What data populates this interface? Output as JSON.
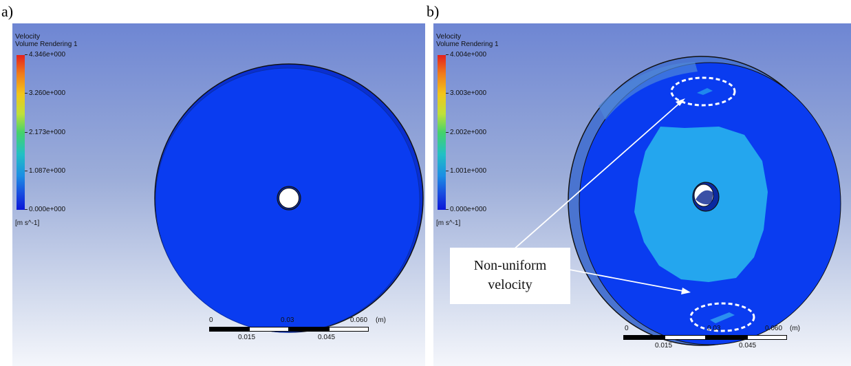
{
  "panel_a": {
    "label": "a)",
    "legend": {
      "title": "Velocity",
      "subtitle": "Volume Rendering 1",
      "ticks": [
        "4.346e+000",
        "3.260e+000",
        "2.173e+000",
        "1.087e+000",
        "0.000e+000"
      ],
      "unit": "[m s^-1]"
    },
    "scale_bar": {
      "top_labels": [
        "0",
        "0.03",
        "0.060",
        "(m)"
      ],
      "bottom_labels": [
        "0.015",
        "0.045"
      ]
    }
  },
  "panel_b": {
    "label": "b)",
    "legend": {
      "title": "Velocity",
      "subtitle": "Volume Rendering 1",
      "ticks": [
        "4.004e+000",
        "3.003e+000",
        "2.002e+000",
        "1.001e+000",
        "0.000e+000"
      ],
      "unit": "[m s^-1]"
    },
    "scale_bar": {
      "top_labels": [
        "0",
        "0.03",
        "0.060",
        "(m)"
      ],
      "bottom_labels": [
        "0.015",
        "0.045"
      ]
    },
    "annotation": {
      "line1": "Non-uniform",
      "line2": "velocity"
    }
  },
  "colors": {
    "disk_blue": "#0a3cf0",
    "region_light_blue": "#24a6ee",
    "background_top": "#6e86d3",
    "background_bottom": "#f4f6fb"
  }
}
